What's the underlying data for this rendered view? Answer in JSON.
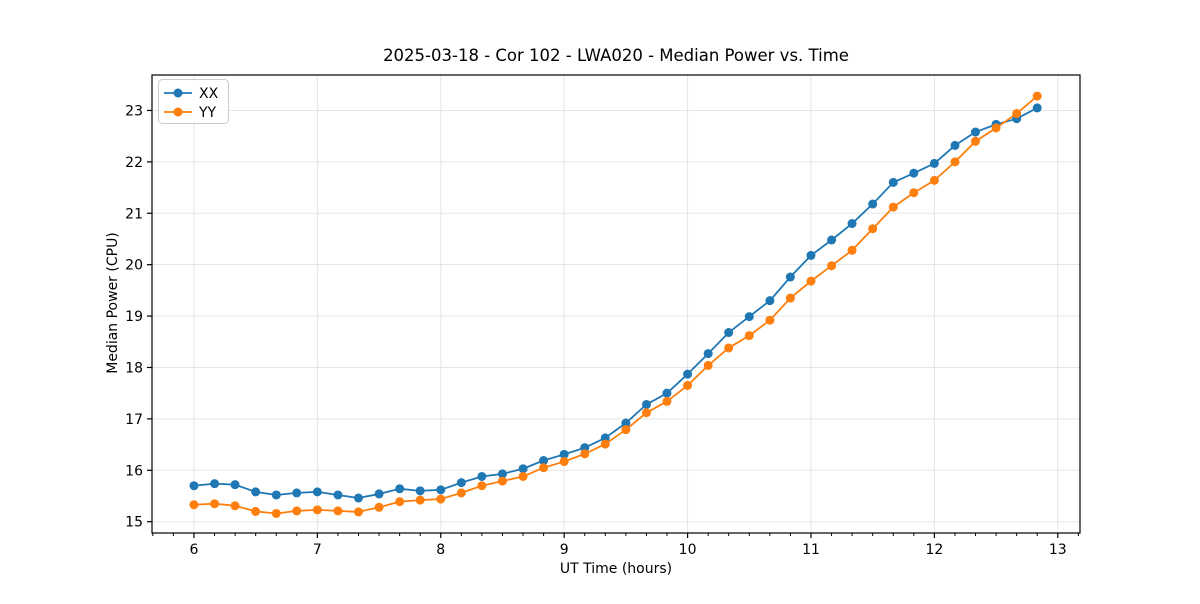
{
  "chart_data": {
    "type": "line",
    "title": "2025-03-18 - Cor 102 - LWA020 - Median Power vs. Time",
    "xlabel": "UT Time (hours)",
    "ylabel": "Median Power (CPU)",
    "xlim": [
      5.66,
      13.18
    ],
    "ylim": [
      14.78,
      23.69
    ],
    "xticks": [
      6,
      7,
      8,
      9,
      10,
      11,
      12,
      13
    ],
    "yticks": [
      15,
      16,
      17,
      18,
      19,
      20,
      21,
      22,
      23
    ],
    "x_minor_interval_hours": 0.16667,
    "grid": true,
    "legend_position": "upper left",
    "x": [
      6.0,
      6.167,
      6.333,
      6.5,
      6.667,
      6.833,
      7.0,
      7.167,
      7.333,
      7.5,
      7.667,
      7.833,
      8.0,
      8.167,
      8.333,
      8.5,
      8.667,
      8.833,
      9.0,
      9.167,
      9.333,
      9.5,
      9.667,
      9.833,
      10.0,
      10.167,
      10.333,
      10.5,
      10.667,
      10.833,
      11.0,
      11.167,
      11.333,
      11.5,
      11.667,
      11.833,
      12.0,
      12.167,
      12.333,
      12.5,
      12.667,
      12.833
    ],
    "series": [
      {
        "name": "XX",
        "color": "#1f77b4",
        "values": [
          15.7,
          15.74,
          15.72,
          15.58,
          15.52,
          15.56,
          15.58,
          15.52,
          15.46,
          15.54,
          15.64,
          15.6,
          15.62,
          15.76,
          15.88,
          15.93,
          16.03,
          16.19,
          16.31,
          16.44,
          16.63,
          16.92,
          17.28,
          17.5,
          17.87,
          18.27,
          18.68,
          18.99,
          19.3,
          19.76,
          20.18,
          20.48,
          20.8,
          21.18,
          21.6,
          21.78,
          21.97,
          22.32,
          22.58,
          22.73,
          22.84,
          23.05
        ]
      },
      {
        "name": "YY",
        "color": "#ff7f0e",
        "values": [
          15.33,
          15.35,
          15.31,
          15.2,
          15.16,
          15.21,
          15.23,
          15.21,
          15.19,
          15.28,
          15.39,
          15.42,
          15.44,
          15.56,
          15.7,
          15.79,
          15.88,
          16.05,
          16.17,
          16.32,
          16.51,
          16.79,
          17.12,
          17.34,
          17.65,
          18.04,
          18.38,
          18.62,
          18.92,
          19.35,
          19.68,
          19.98,
          20.28,
          20.7,
          21.12,
          21.4,
          21.64,
          22.0,
          22.4,
          22.66,
          22.94,
          23.28
        ]
      }
    ]
  },
  "style_colors": {
    "grid": "#e5e5e5",
    "spine": "#000000",
    "background": "#ffffff",
    "legend_border": "#cccccc"
  }
}
